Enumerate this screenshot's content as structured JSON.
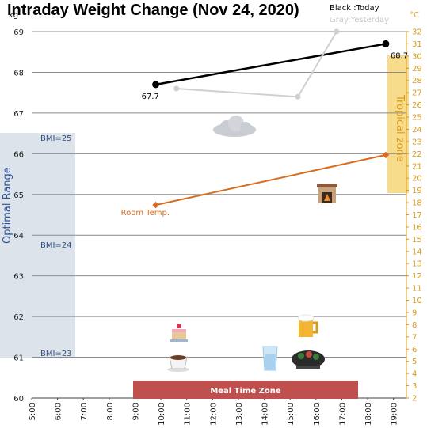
{
  "chart_data": {
    "type": "line",
    "title": "Intraday Weight Change (Nov 24, 2020)",
    "legend": {
      "today": "Black :Today",
      "yesterday": "Gray:Yesterday",
      "placement": "top-right"
    },
    "y_left_unit": "kg",
    "y_right_unit": "°C",
    "ylim": [
      60,
      69
    ],
    "y2lim": [
      2,
      32
    ],
    "xlim": [
      5,
      19.5
    ],
    "x_ticks": [
      "5:00",
      "6:00",
      "7:00",
      "8:00",
      "9:00",
      "10:00",
      "11:00",
      "12:00",
      "13:00",
      "14:00",
      "15:00",
      "16:00",
      "17:00",
      "18:00",
      "19:00"
    ],
    "y_ticks": [
      "60",
      "61",
      "62",
      "63",
      "64",
      "65",
      "66",
      "67",
      "68",
      "69"
    ],
    "y2_ticks": [
      "2",
      "3",
      "4",
      "5",
      "6",
      "7",
      "8",
      "9",
      "10",
      "11",
      "12",
      "13",
      "14",
      "15",
      "16",
      "17",
      "18",
      "19",
      "20",
      "21",
      "22",
      "23",
      "24",
      "25",
      "26",
      "27",
      "28",
      "29",
      "30",
      "31",
      "32"
    ],
    "grid": true,
    "series": [
      {
        "name": "Black :Today",
        "color": "#000000",
        "points": [
          [
            9.8,
            67.7
          ],
          [
            18.7,
            68.7
          ]
        ],
        "labels": [
          "67.7",
          "68.7"
        ]
      },
      {
        "name": "Gray:Yesterday",
        "color": "#d0d0d0",
        "points": [
          [
            10.6,
            67.6
          ],
          [
            15.3,
            67.4
          ],
          [
            16.8,
            69.0
          ]
        ]
      },
      {
        "name": "Room Temp.",
        "color": "#d86b1f",
        "axis": "right",
        "points": [
          [
            9.8,
            17.8
          ],
          [
            18.7,
            21.9
          ]
        ]
      }
    ],
    "bands": {
      "optimal_range": {
        "label": "Optimal Range",
        "ymin": 61,
        "ymax": 66.5,
        "color": "#dde3ea"
      },
      "tropical_zone": {
        "label": "Tropical zone",
        "y2min": 19,
        "y2max": 31,
        "color": "#f7dc8c"
      },
      "meal_time_zone": {
        "label": "Meal Time Zone",
        "xmin": 9,
        "xmax": 18.1,
        "color": "#c0504d"
      }
    },
    "bmi_labels": [
      {
        "text": "BMI=25",
        "y": 66.4
      },
      {
        "text": "BMI=24",
        "y": 63.8
      },
      {
        "text": "BMI=23",
        "y": 61.1
      }
    ]
  },
  "icons": [
    "cloud-icon",
    "fireplace-icon",
    "cake-icon",
    "coffee-cup-icon",
    "water-glass-icon",
    "beer-mug-icon",
    "hotpot-icon"
  ]
}
